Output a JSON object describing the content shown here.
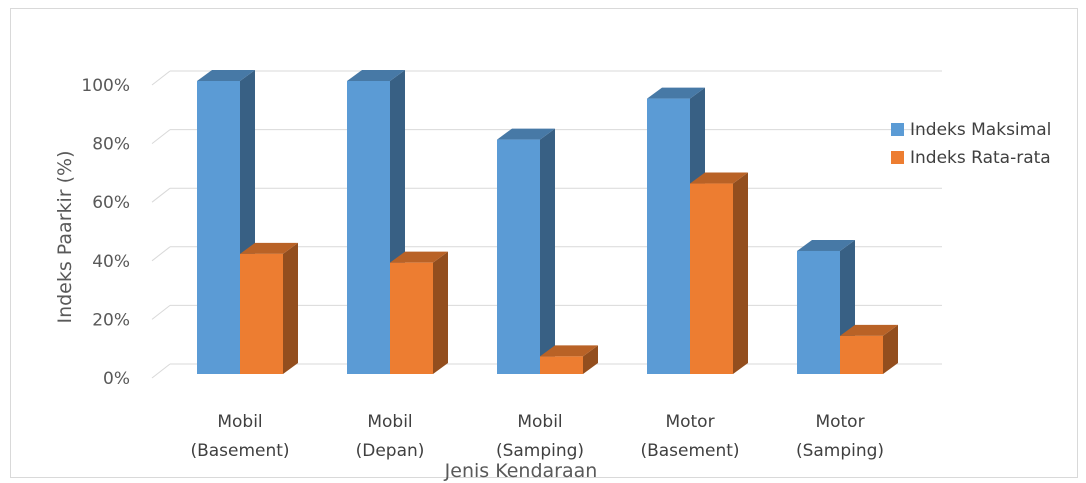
{
  "chart_data": {
    "type": "bar",
    "title": "",
    "xlabel": "Jenis Kendaraan",
    "ylabel": "Indeks Paarkir (%)",
    "ylim": [
      0,
      100
    ],
    "yticks": [
      "0%",
      "20%",
      "40%",
      "60%",
      "80%",
      "100%"
    ],
    "categories": [
      [
        "Mobil",
        "(Basement)"
      ],
      [
        "Mobil",
        "(Depan)"
      ],
      [
        "Mobil",
        "(Samping)"
      ],
      [
        "Motor",
        "(Basement)"
      ],
      [
        "Motor",
        "(Samping)"
      ]
    ],
    "series": [
      {
        "name": "Indeks Maksimal",
        "values": [
          100,
          100,
          80,
          94,
          42
        ],
        "color": "#5b9bd5"
      },
      {
        "name": "Indeks Rata-rata",
        "values": [
          41,
          38,
          6,
          65,
          13
        ],
        "color": "#ed7d31"
      }
    ],
    "legend": "right",
    "grid": true,
    "style": "3d-column"
  }
}
